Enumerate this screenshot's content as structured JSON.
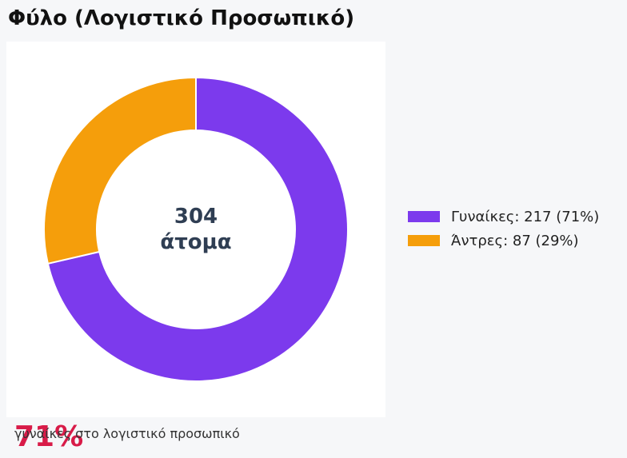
{
  "page": {
    "title": "Φύλο (Λογιστικό Προσωπικό)",
    "highlight_percent": "71%",
    "caption": "γυναίκες στο λογιστικό προσωπικό"
  },
  "chart_data": {
    "type": "pie",
    "donut": true,
    "total": 304,
    "center_label": {
      "line1": "304",
      "line2": "άτομα"
    },
    "slices": [
      {
        "label": "Γυναίκες",
        "value": 217,
        "percent": 71,
        "color": "#7c3aed",
        "legend_text": "Γυναίκες: 217 (71%)"
      },
      {
        "label": "Άντρες",
        "value": 87,
        "percent": 29,
        "color": "#f59e0b",
        "legend_text": "Άντρες: 87 (29%)"
      }
    ],
    "legend_position": "right",
    "start_angle": "top",
    "direction": "clockwise"
  },
  "colors": {
    "highlight": "#d81b48",
    "center_text": "#2f3e53",
    "background": "#f6f7f9",
    "card": "#ffffff"
  }
}
